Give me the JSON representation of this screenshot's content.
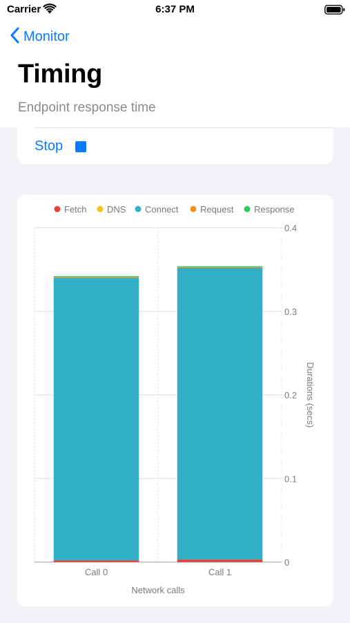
{
  "status_bar": {
    "carrier": "Carrier",
    "time": "6:37 PM"
  },
  "nav": {
    "back_label": "Monitor"
  },
  "page": {
    "title": "Timing",
    "subtitle": "Endpoint response time"
  },
  "controls": {
    "stop_label": "Stop"
  },
  "colors": {
    "accent": "#0a7aff",
    "fetch": "#e8403a",
    "dns": "#f5c518",
    "connect": "#31b0c6",
    "request": "#f3901f",
    "response": "#34c759"
  },
  "chart_data": {
    "type": "bar",
    "stacked": true,
    "categories": [
      "Call 0",
      "Call 1"
    ],
    "series": [
      {
        "name": "Fetch",
        "values": [
          0.002,
          0.003
        ]
      },
      {
        "name": "DNS",
        "values": [
          0.0,
          0.0
        ]
      },
      {
        "name": "Connect",
        "values": [
          0.338,
          0.349
        ]
      },
      {
        "name": "Request",
        "values": [
          0.001,
          0.001
        ]
      },
      {
        "name": "Response",
        "values": [
          0.001,
          0.001
        ]
      }
    ],
    "xlabel": "Network calls",
    "ylabel": "Durations (secs)",
    "ylim": [
      0,
      0.4
    ],
    "yticks": [
      0,
      0.1,
      0.2,
      0.3,
      0.4
    ],
    "ytick_labels": [
      "0",
      "0.1",
      "0.2",
      "0.3",
      "0.4"
    ],
    "y_axis_side": "right",
    "legend_position": "top",
    "grid": true
  }
}
